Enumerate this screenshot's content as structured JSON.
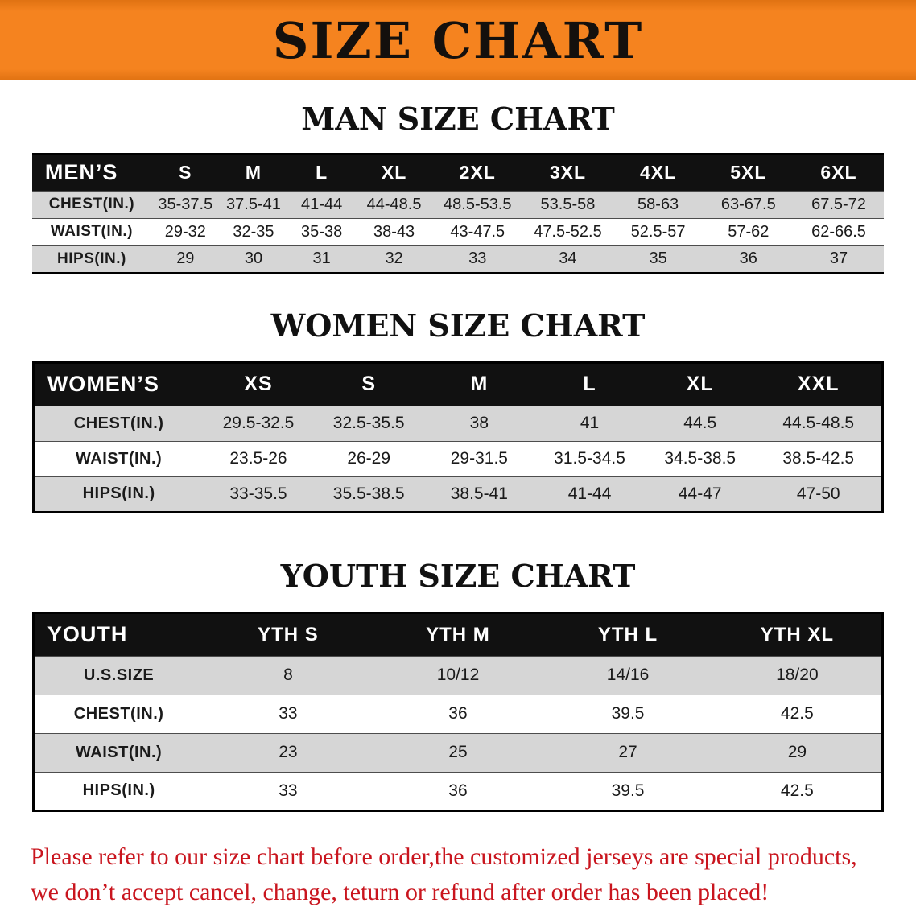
{
  "banner": {
    "title": "SIZE CHART"
  },
  "colors": {
    "banner_bg": "#f5831f",
    "header_bg": "#111111",
    "row_alt_bg": "#d6d6d6",
    "notice_text": "#c9151e",
    "title_text": "#111111"
  },
  "men": {
    "title": "MAN SIZE CHART",
    "header": [
      "MEN’S",
      "S",
      "M",
      "L",
      "XL",
      "2XL",
      "3XL",
      "4XL",
      "5XL",
      "6XL"
    ],
    "rows": [
      {
        "label": "CHEST(IN.)",
        "values": [
          "35-37.5",
          "37.5-41",
          "41-44",
          "44-48.5",
          "48.5-53.5",
          "53.5-58",
          "58-63",
          "63-67.5",
          "67.5-72"
        ]
      },
      {
        "label": "WAIST(IN.)",
        "values": [
          "29-32",
          "32-35",
          "35-38",
          "38-43",
          "43-47.5",
          "47.5-52.5",
          "52.5-57",
          "57-62",
          "62-66.5"
        ]
      },
      {
        "label": "HIPS(IN.)",
        "values": [
          "29",
          "30",
          "31",
          "32",
          "33",
          "34",
          "35",
          "36",
          "37"
        ]
      }
    ]
  },
  "women": {
    "title": "WOMEN SIZE CHART",
    "header": [
      "WOMEN’S",
      "XS",
      "S",
      "M",
      "L",
      "XL",
      "XXL"
    ],
    "rows": [
      {
        "label": "CHEST(IN.)",
        "values": [
          "29.5-32.5",
          "32.5-35.5",
          "38",
          "41",
          "44.5",
          "44.5-48.5"
        ]
      },
      {
        "label": "WAIST(IN.)",
        "values": [
          "23.5-26",
          "26-29",
          "29-31.5",
          "31.5-34.5",
          "34.5-38.5",
          "38.5-42.5"
        ]
      },
      {
        "label": "HIPS(IN.)",
        "values": [
          "33-35.5",
          "35.5-38.5",
          "38.5-41",
          "41-44",
          "44-47",
          "47-50"
        ]
      }
    ]
  },
  "youth": {
    "title": "YOUTH SIZE CHART",
    "header": [
      "YOUTH",
      "YTH S",
      "YTH M",
      "YTH L",
      "YTH XL"
    ],
    "rows": [
      {
        "label": "U.S.SIZE",
        "values": [
          "8",
          "10/12",
          "14/16",
          "18/20"
        ]
      },
      {
        "label": "CHEST(IN.)",
        "values": [
          "33",
          "36",
          "39.5",
          "42.5"
        ]
      },
      {
        "label": "WAIST(IN.)",
        "values": [
          "23",
          "25",
          "27",
          "29"
        ]
      },
      {
        "label": "HIPS(IN.)",
        "values": [
          "33",
          "36",
          "39.5",
          "42.5"
        ]
      }
    ]
  },
  "footer": {
    "line1": "Please refer to our size chart before order,the customized jerseys are special products,",
    "line2": "we don’t accept cancel, change, teturn or refund after order has been placed!"
  }
}
